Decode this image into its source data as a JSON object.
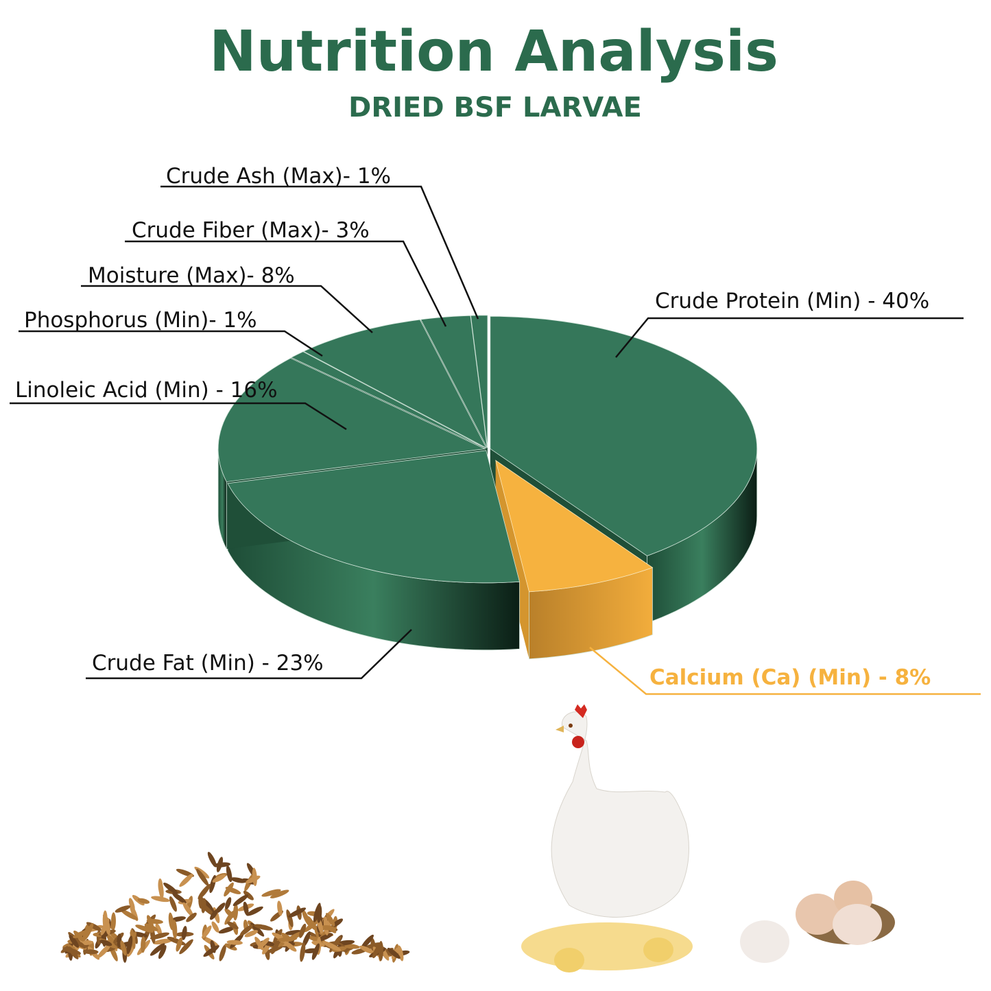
{
  "header": {
    "title": "Nutrition Analysis",
    "subtitle": "DRIED BSF LARVAE"
  },
  "colors": {
    "title": "#2b6b4d",
    "slice": "#35775a",
    "slice_side": "#1f4f38",
    "highlight": "#f6b23f",
    "highlight_side": "#d4952e"
  },
  "chart_data": {
    "type": "pie",
    "style": "3d-exploded",
    "title": "Nutrition Analysis",
    "subtitle": "DRIED BSF LARVAE",
    "categories": [
      "Crude Protein (Min)",
      "Calcium (Ca) (Min)",
      "Crude Fat (Min)",
      "Linoleic Acid (Min)",
      "Phosphorus (Min)",
      "Moisture (Max)",
      "Crude Fiber (Max)",
      "Crude Ash (Max)"
    ],
    "values": [
      40,
      8,
      23,
      16,
      1,
      8,
      3,
      1
    ],
    "unit": "%",
    "highlighted": "Calcium (Ca) (Min)",
    "labels": [
      "Crude Protein (Min) - 40%",
      "Calcium (Ca) (Min) - 8%",
      "Crude Fat (Min) - 23%",
      "Linoleic Acid (Min) - 16%",
      "Phosphorus (Min)- 1%",
      "Moisture (Max)- 8%",
      "Crude Fiber (Max)- 3%",
      "Crude Ash (Max)- 1%"
    ]
  },
  "images": [
    "dried-larvae-pile",
    "hen-with-chicks",
    "eggs-in-basket"
  ]
}
